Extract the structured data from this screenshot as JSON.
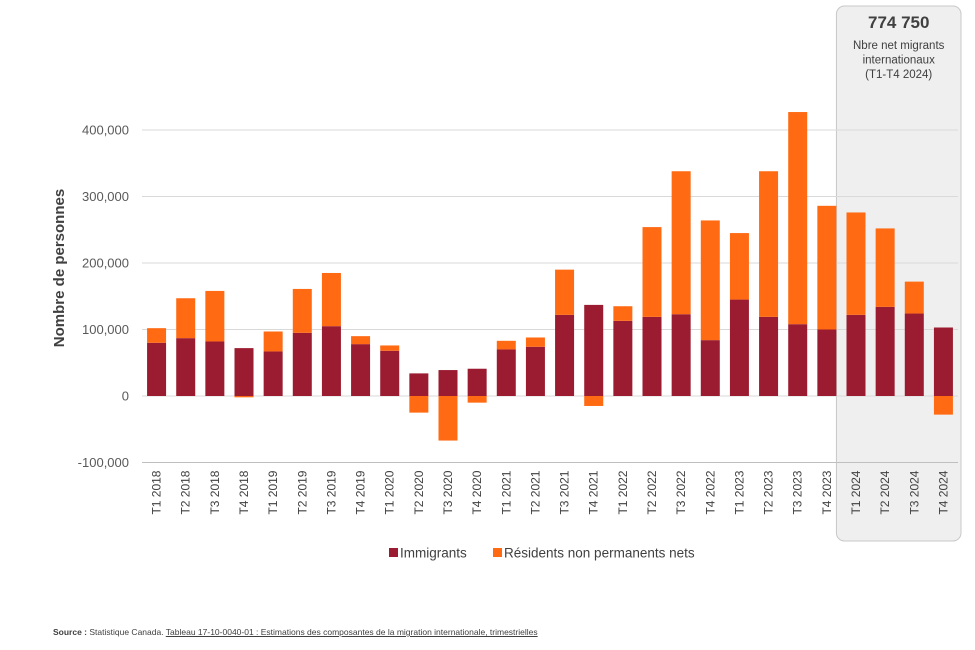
{
  "chart_data": {
    "type": "bar",
    "stacked": true,
    "ylabel": "Nombre de personnes",
    "ylim": [
      -100000,
      430000
    ],
    "yticks": [
      -100000,
      0,
      100000,
      200000,
      300000,
      400000
    ],
    "ytick_labels": [
      "-100,000",
      "0",
      "100,000",
      "200,000",
      "300,000",
      "400,000"
    ],
    "grid": true,
    "categories": [
      "T1 2018",
      "T2 2018",
      "T3 2018",
      "T4 2018",
      "T1 2019",
      "T2 2019",
      "T3 2019",
      "T4 2019",
      "T1 2020",
      "T2 2020",
      "T3 2020",
      "T4 2020",
      "T1 2021",
      "T2 2021",
      "T3 2021",
      "T4 2021",
      "T1 2022",
      "T2 2022",
      "T3 2022",
      "T4 2022",
      "T1 2023",
      "T2 2023",
      "T3 2023",
      "T4 2023",
      "T1 2024",
      "T2 2024",
      "T3 2024",
      "T4 2024"
    ],
    "series": [
      {
        "name": "Immigrants",
        "color": "#9b1b30",
        "values": [
          80000,
          87000,
          82000,
          72000,
          67000,
          95000,
          105000,
          78000,
          68000,
          34000,
          39000,
          41000,
          70000,
          74000,
          122000,
          137000,
          113000,
          119000,
          123000,
          84000,
          145000,
          119000,
          108000,
          100000,
          122000,
          134000,
          124000,
          103000
        ]
      },
      {
        "name": "Résidents non permanents nets",
        "color": "#ff6a13",
        "values": [
          22000,
          60000,
          76000,
          -2000,
          30000,
          66000,
          80000,
          12000,
          8000,
          -25000,
          -67000,
          -10000,
          13000,
          14000,
          68000,
          -15000,
          22000,
          135000,
          215000,
          180000,
          100000,
          219000,
          319000,
          186000,
          154000,
          118000,
          48000,
          -28000
        ]
      }
    ],
    "legend_position": "bottom",
    "highlight": {
      "from_category": "T1 2024",
      "to_category": "T4 2024",
      "value": "774 750",
      "lines": [
        "Nbre net migrants",
        "internationaux",
        "(T1-T4 2024)"
      ]
    }
  },
  "source": {
    "label": "Source :",
    "text": " Statistique Canada. ",
    "link": "Tableau 17-10-0040-01 : Estimations des composantes de la migration internationale, trimestrielles"
  }
}
